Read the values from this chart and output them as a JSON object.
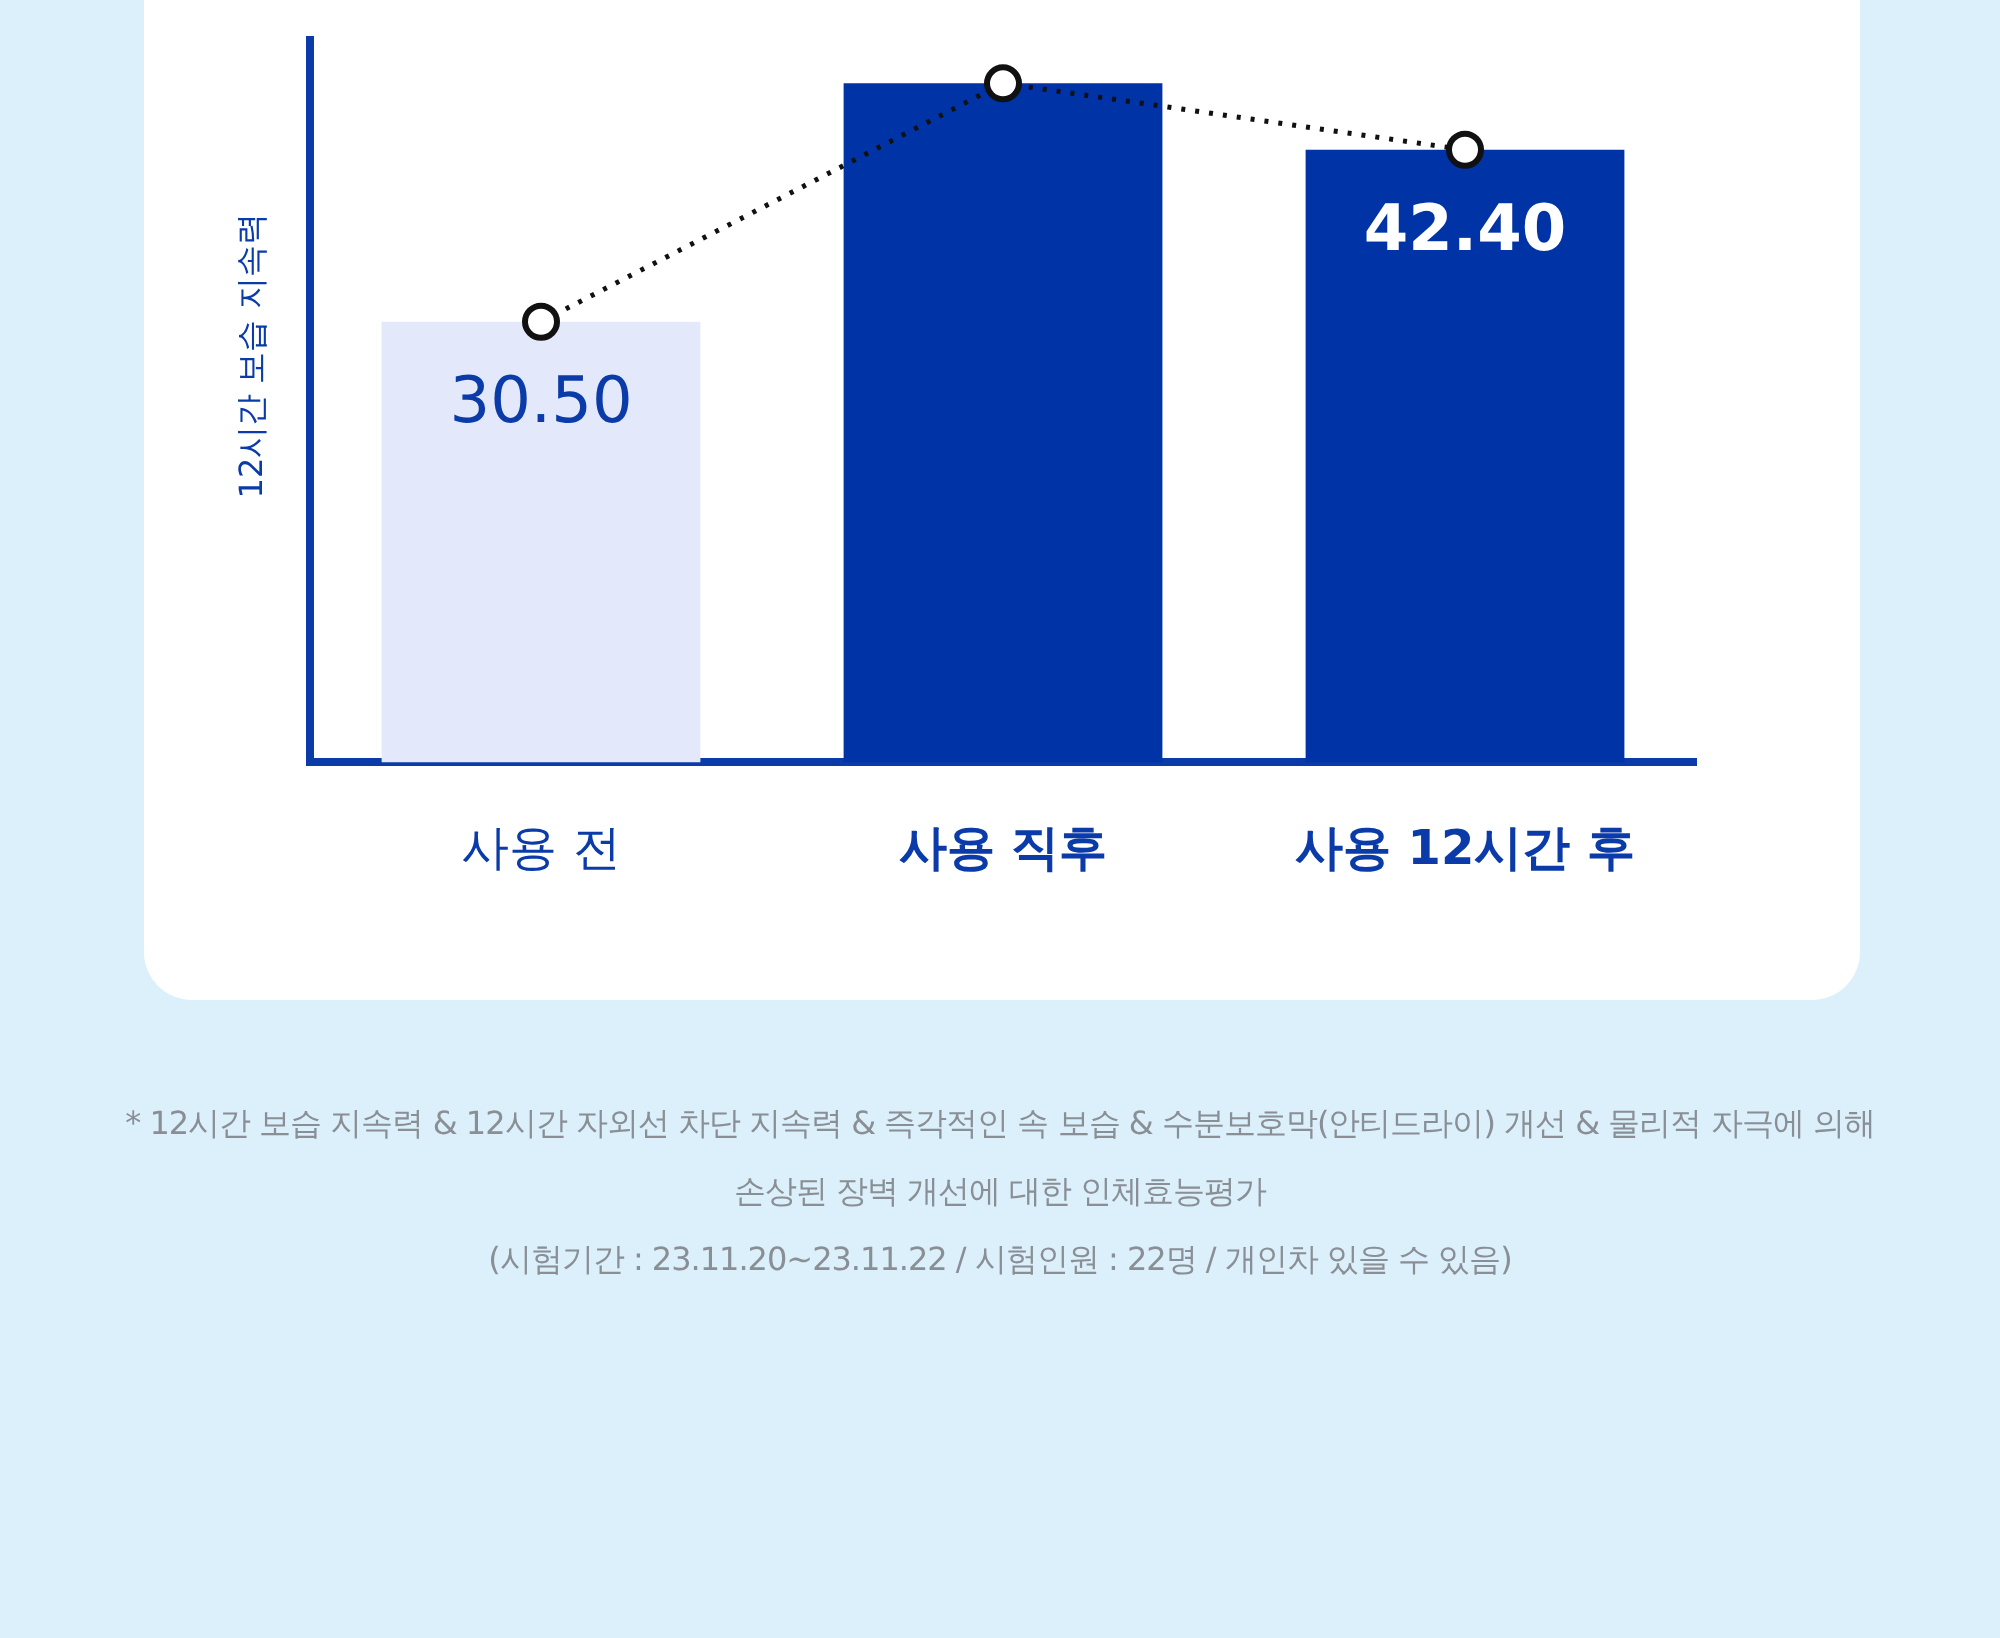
{
  "chart_data": {
    "type": "bar",
    "ylabel": "12시간 보습 지속력",
    "categories": [
      "사용 전",
      "사용 직후",
      "사용 12시간 후"
    ],
    "series": [
      {
        "colors": [
          "#e3e9fb",
          "#0033a6",
          "#0033a6"
        ],
        "values": [
          30.5,
          47,
          42.4
        ],
        "value_labels": [
          "30.50",
          null,
          "42.40"
        ]
      },
      {
        "type": "line",
        "color": "#111111",
        "values": [
          30.5,
          47,
          42.4
        ],
        "marker": "circle",
        "line_style": "dotted"
      }
    ],
    "tick_labels": "x",
    "annotations": [
      "* 12시간 보습 지속력 & 12시간 자외선 차단 지속력 & 즉각적인 속 보습 & 수분보호막(안티드라이) 개선 & 물리적 자극에 의해 손상된 장벽 개선에 대한 인체효능평가",
      "(시험기간 : 23.11.20~23.11.22 / 시험인원 : 22명 / 개인차 있을 수 있음)"
    ]
  }
}
